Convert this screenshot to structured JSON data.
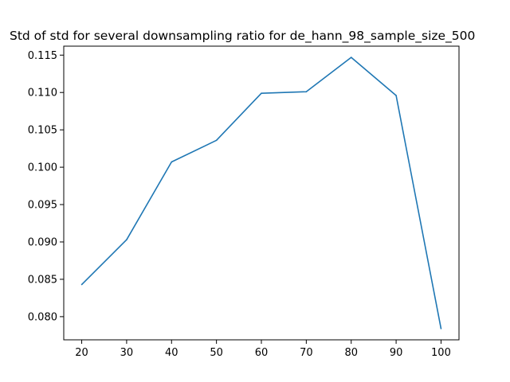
{
  "chart_data": {
    "type": "line",
    "title": "Std of std for several downsampling ratio for de_hann_98_sample_size_500",
    "xlabel": "",
    "ylabel": "",
    "x": [
      20,
      30,
      40,
      50,
      60,
      70,
      80,
      90,
      100
    ],
    "series": [
      {
        "values": [
          0.0843,
          0.0903,
          0.1007,
          0.1036,
          0.1099,
          0.1101,
          0.1147,
          0.1096,
          0.0784
        ],
        "color": "#1f77b4"
      }
    ],
    "xlim": [
      16,
      104
    ],
    "ylim": [
      0.0769,
      0.1162
    ],
    "xticks": [
      "20",
      "30",
      "40",
      "50",
      "60",
      "70",
      "80",
      "90",
      "100"
    ],
    "yticks": [
      "0.080",
      "0.085",
      "0.090",
      "0.095",
      "0.100",
      "0.105",
      "0.110",
      "0.115"
    ],
    "grid": false,
    "legend": "none"
  }
}
